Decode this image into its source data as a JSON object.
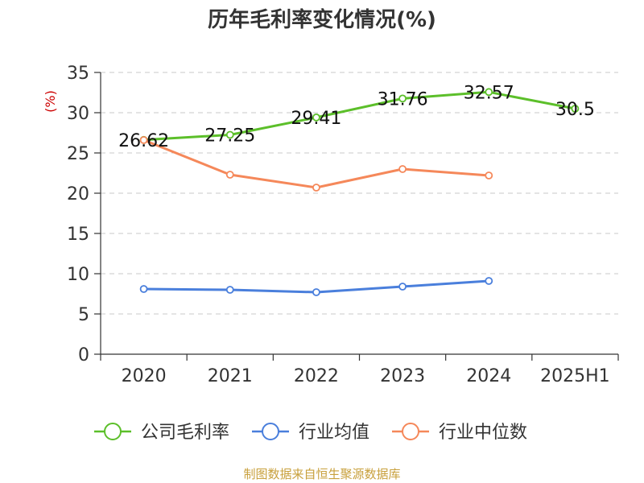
{
  "chart_data": {
    "type": "line",
    "title": "历年毛利率变化情况(%)",
    "ylabel": "(%)",
    "xlabel": "",
    "categories": [
      "2020",
      "2021",
      "2022",
      "2023",
      "2024",
      "2025H1"
    ],
    "ylim": [
      0,
      35
    ],
    "yticks": [
      0,
      5,
      10,
      15,
      20,
      25,
      30,
      35
    ],
    "grid": true,
    "legend_position": "bottom",
    "series": [
      {
        "name": "公司毛利率",
        "color": "#5cbf2a",
        "values": [
          26.62,
          27.25,
          29.41,
          31.76,
          32.57,
          30.5
        ],
        "labels": [
          "26.62",
          "27.25",
          "29.41",
          "31.76",
          "32.57",
          "30.5"
        ]
      },
      {
        "name": "行业均值",
        "color": "#4a7fdc",
        "values": [
          8.1,
          8.0,
          7.7,
          8.4,
          9.1,
          null
        ]
      },
      {
        "name": "行业中位数",
        "color": "#f5885a",
        "values": [
          26.6,
          22.3,
          20.7,
          23.0,
          22.2,
          null
        ]
      }
    ]
  },
  "source": "制图数据来自恒生聚源数据库"
}
